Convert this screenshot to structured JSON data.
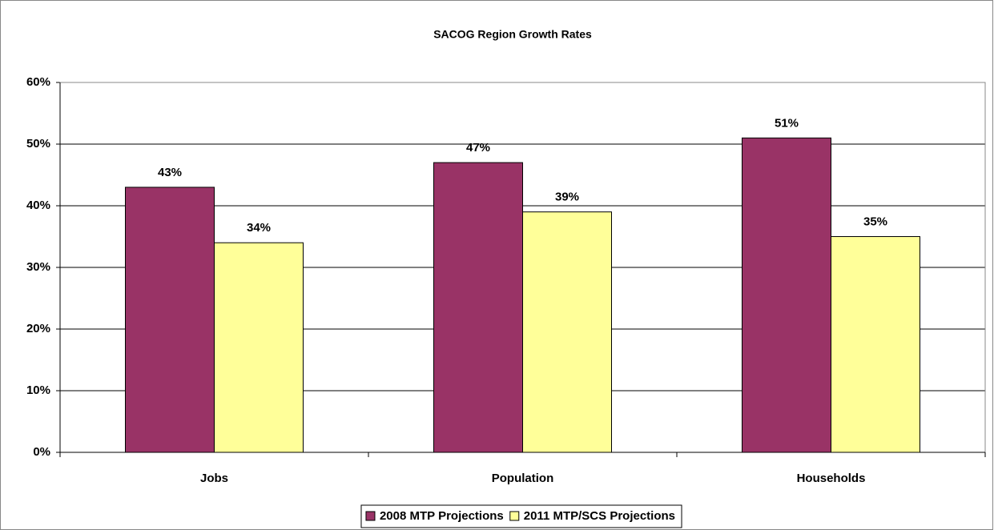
{
  "chart_data": {
    "type": "bar",
    "title": "SACOG Region Growth Rates",
    "categories": [
      "Jobs",
      "Population",
      "Households"
    ],
    "series": [
      {
        "name": "2008 MTP Projections",
        "color": "#993366",
        "values": [
          43,
          47,
          51
        ],
        "value_labels": [
          "43%",
          "47%",
          "51%"
        ]
      },
      {
        "name": "2011 MTP/SCS Projections",
        "color": "#ffff99",
        "values": [
          34,
          39,
          35
        ],
        "value_labels": [
          "34%",
          "39%",
          "35%"
        ]
      }
    ],
    "ylim": [
      0,
      60
    ],
    "yticks": [
      {
        "value": 0,
        "label": "0%"
      },
      {
        "value": 10,
        "label": "10%"
      },
      {
        "value": 20,
        "label": "20%"
      },
      {
        "value": 30,
        "label": "30%"
      },
      {
        "value": 40,
        "label": "40%"
      },
      {
        "value": 50,
        "label": "50%"
      },
      {
        "value": 60,
        "label": "60%"
      }
    ],
    "grid": true,
    "legend": "bottom"
  }
}
